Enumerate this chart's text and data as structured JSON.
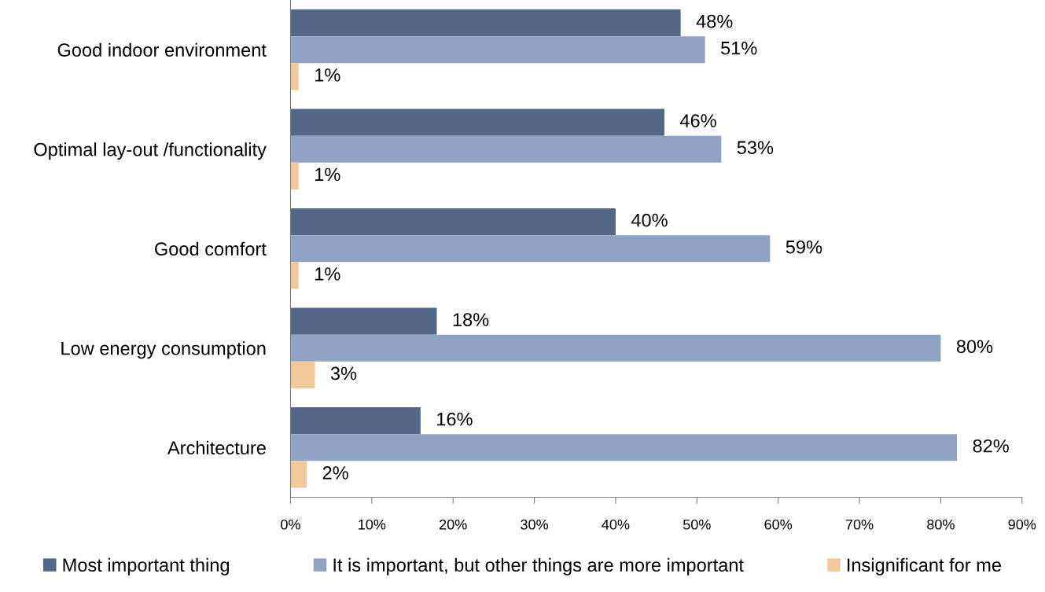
{
  "chart_data": {
    "type": "bar",
    "orientation": "horizontal",
    "categories": [
      "Good indoor environment",
      "Optimal lay-out /functionality",
      "Good comfort",
      "Low energy consumption",
      "Architecture"
    ],
    "series": [
      {
        "name": "Most important thing",
        "color": "#536887",
        "values": [
          48,
          46,
          40,
          18,
          16
        ],
        "value_labels": [
          "48%",
          "46%",
          "40%",
          "18%",
          "16%"
        ]
      },
      {
        "name": "It is important, but other things are more important",
        "color": "#8fa3c4",
        "values": [
          51,
          53,
          59,
          80,
          82
        ],
        "value_labels": [
          "51%",
          "53%",
          "59%",
          "80%",
          "82%"
        ]
      },
      {
        "name": "Insignificant for me",
        "color": "#f2c99a",
        "values": [
          1,
          1,
          1,
          3,
          2
        ],
        "value_labels": [
          "1%",
          "1%",
          "1%",
          "3%",
          "2%"
        ]
      }
    ],
    "xlim": [
      0,
      90
    ],
    "xticks": [
      {
        "value": 0,
        "label": "0%"
      },
      {
        "value": 10,
        "label": "10%"
      },
      {
        "value": 20,
        "label": "20%"
      },
      {
        "value": 30,
        "label": "30%"
      },
      {
        "value": 40,
        "label": "40%"
      },
      {
        "value": 50,
        "label": "50%"
      },
      {
        "value": 60,
        "label": "60%"
      },
      {
        "value": 70,
        "label": "70%"
      },
      {
        "value": 80,
        "label": "80%"
      },
      {
        "value": 90,
        "label": "90%"
      }
    ],
    "grid": false,
    "legend": "bottom"
  }
}
